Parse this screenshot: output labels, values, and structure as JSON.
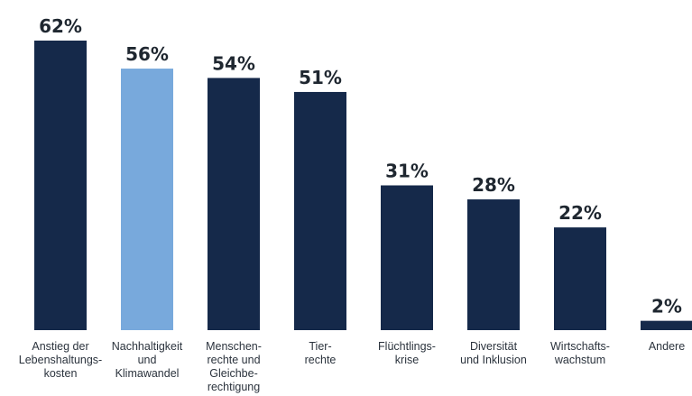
{
  "chart_data": {
    "type": "bar",
    "categories": [
      [
        "Anstieg der",
        "Lebenshaltungs-",
        "kosten"
      ],
      [
        "Nachhaltigkeit",
        "und",
        "Klimawandel"
      ],
      [
        "Menschen-",
        "rechte und",
        "Gleichbe-",
        "rechtigung"
      ],
      [
        "Tier-",
        "rechte"
      ],
      [
        "Flüchtlings-",
        "krise"
      ],
      [
        "Diversität",
        "und Inklusion"
      ],
      [
        "Wirtschafts-",
        "wachstum"
      ],
      [
        "Andere"
      ]
    ],
    "values": [
      62,
      56,
      54,
      51,
      31,
      28,
      22,
      2
    ],
    "value_labels": [
      "62%",
      "56%",
      "54%",
      "51%",
      "31%",
      "28%",
      "22%",
      "2%"
    ],
    "unit": "%",
    "ylim": [
      0,
      62
    ],
    "grid": false,
    "legend": "none",
    "highlight_index": 1,
    "colors": {
      "bar": "#15294a",
      "highlight": "#78a9dc",
      "value_text": "#1f2730",
      "category_text": "#2b333d"
    }
  }
}
